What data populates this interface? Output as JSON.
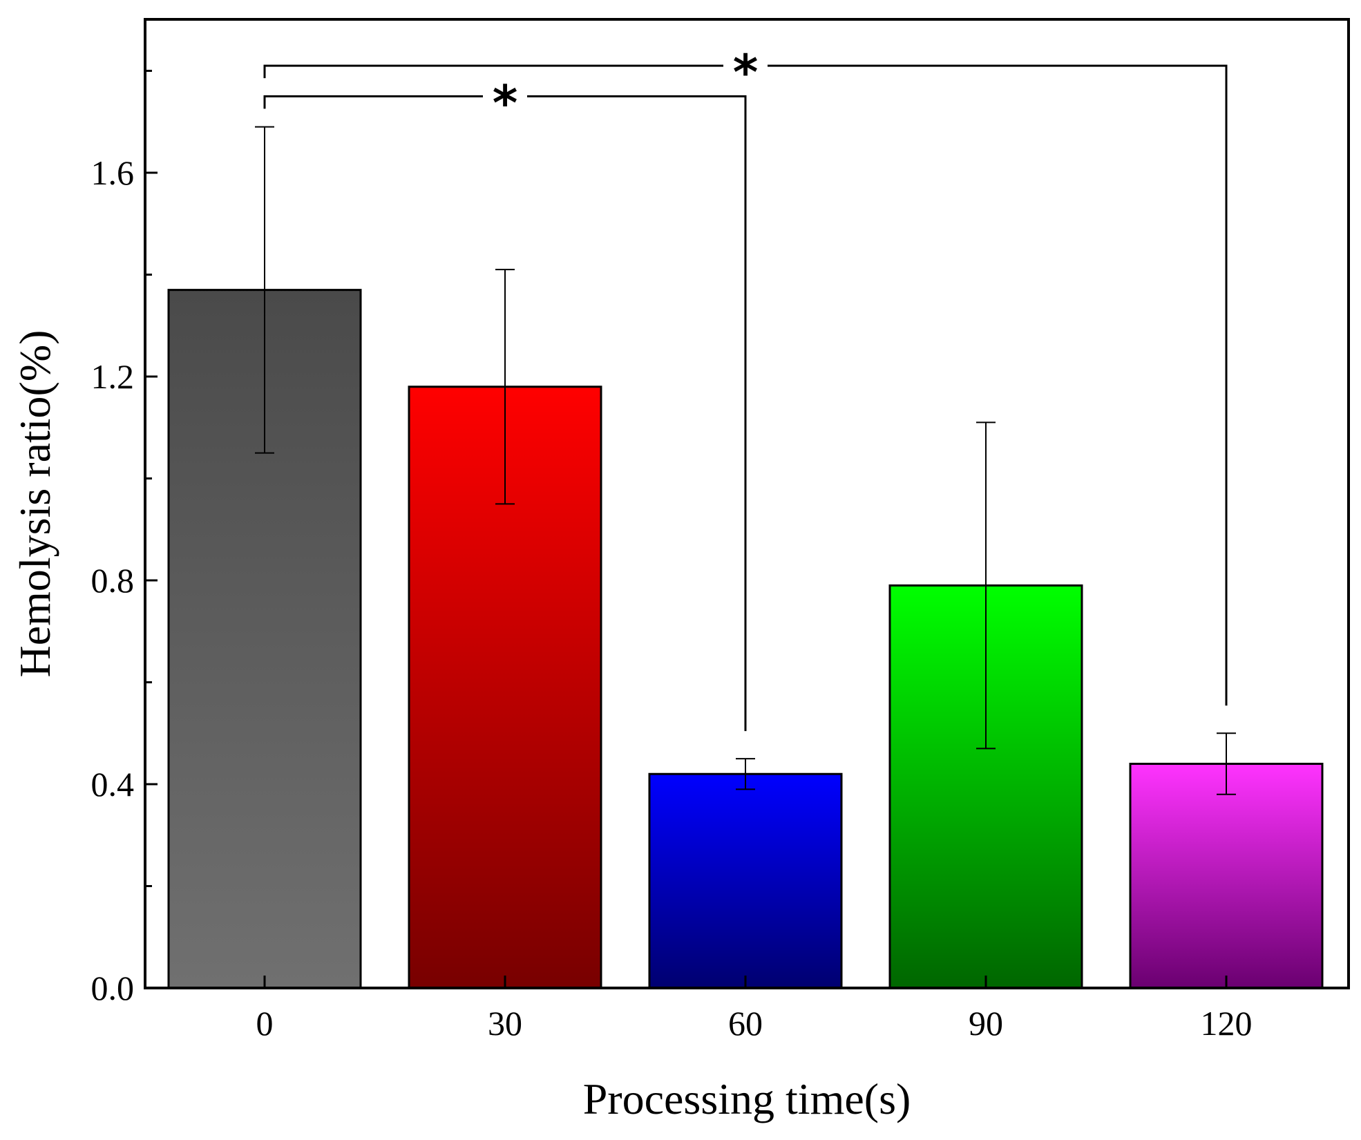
{
  "chart_data": {
    "type": "bar",
    "title": "",
    "xlabel": "Processing time(s)",
    "ylabel": "Hemolysis ratio(%)",
    "categories": [
      "0",
      "30",
      "60",
      "90",
      "120"
    ],
    "values": [
      1.37,
      1.18,
      0.42,
      0.79,
      0.44
    ],
    "errors": [
      0.32,
      0.23,
      0.03,
      0.32,
      0.06
    ],
    "colors": [
      {
        "top": "#4a4a4a",
        "bottom": "#707070"
      },
      {
        "top": "#ff0000",
        "bottom": "#780000"
      },
      {
        "top": "#0000ff",
        "bottom": "#000070"
      },
      {
        "top": "#00ff00",
        "bottom": "#006600"
      },
      {
        "top": "#ff33ff",
        "bottom": "#6a0070"
      }
    ],
    "ylim": [
      0,
      1.9
    ],
    "yticks": [
      "0.0",
      "0.4",
      "0.8",
      "1.2",
      "1.6"
    ],
    "ytick_values": [
      0,
      0.4,
      0.8,
      1.2,
      1.6
    ],
    "grid": false,
    "significance": [
      {
        "from": "0",
        "to": "60",
        "label": "*",
        "y": 1.75
      },
      {
        "from": "0",
        "to": "120",
        "label": "*",
        "y": 1.81
      }
    ]
  }
}
